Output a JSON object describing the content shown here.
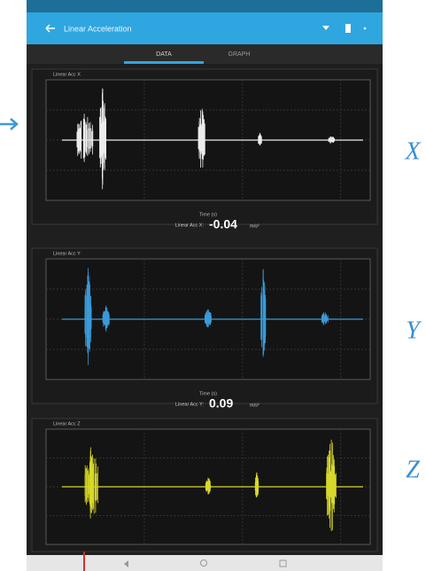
{
  "toolbar": {
    "title": "Linear Acceleration"
  },
  "tabs": [
    "DATA",
    "GRAPH"
  ],
  "panels": [
    {
      "title": "Linear Acc X",
      "x_axis_label": "Time (s)",
      "readout_label": "Linear Acc X:",
      "readout_value": "-0.04",
      "readout_unit": "m/s²",
      "annotation": "X"
    },
    {
      "title": "Linear Acc Y",
      "x_axis_label": "Time (s)",
      "readout_label": "Linear Acc Y:",
      "readout_value": "0.09",
      "readout_unit": "m/s²",
      "annotation": "Y"
    },
    {
      "title": "Linear Acc Z",
      "annotation": "Z"
    }
  ]
}
